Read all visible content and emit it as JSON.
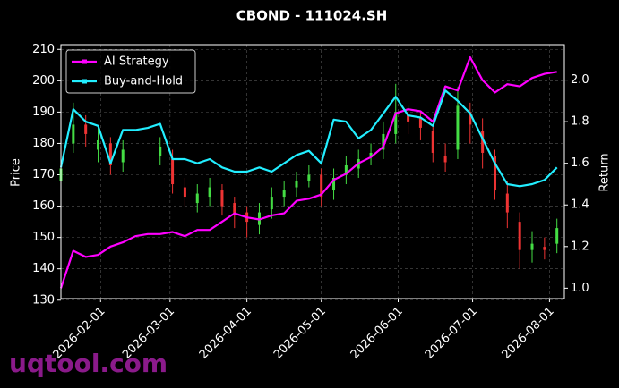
{
  "chart_data": {
    "type": "candlestick",
    "title": "CBOND - 111024.SH",
    "ylabel": "Price",
    "y2label": "Return",
    "watermark": "uqtool.com",
    "x": [
      "2026-01-16",
      "2026-01-21",
      "2026-01-26",
      "2026-01-31",
      "2026-02-05",
      "2026-02-10",
      "2026-02-15",
      "2026-02-20",
      "2026-02-25",
      "2026-03-02",
      "2026-03-07",
      "2026-03-12",
      "2026-03-17",
      "2026-03-22",
      "2026-03-27",
      "2026-04-01",
      "2026-04-06",
      "2026-04-11",
      "2026-04-16",
      "2026-04-21",
      "2026-04-26",
      "2026-05-01",
      "2026-05-06",
      "2026-05-11",
      "2026-05-16",
      "2026-05-21",
      "2026-05-26",
      "2026-05-31",
      "2026-06-05",
      "2026-06-10",
      "2026-06-15",
      "2026-06-20",
      "2026-06-25",
      "2026-06-30",
      "2026-07-05",
      "2026-07-10",
      "2026-07-15",
      "2026-07-20",
      "2026-07-25",
      "2026-07-30",
      "2026-08-04"
    ],
    "xlim": [
      "2026-01-16",
      "2026-08-07"
    ],
    "xticks": [
      "2026-02-01",
      "2026-03-01",
      "2026-04-01",
      "2026-05-01",
      "2026-06-01",
      "2026-07-01",
      "2026-08-01"
    ],
    "ylim": [
      130.5,
      211.5
    ],
    "yticks": [
      130,
      140,
      150,
      160,
      170,
      180,
      190,
      200,
      210
    ],
    "y2lim": [
      0.95,
      2.17
    ],
    "y2ticks": [
      {
        "value": 1.0,
        "label": "1.0"
      },
      1.2,
      1.4,
      1.6,
      1.8,
      {
        "value": 2.0,
        "label": "2.0"
      }
    ],
    "grid": true,
    "legend": "upper left",
    "up_color": "#44dd44",
    "down_color": "#ee3333",
    "candles": {
      "open": [
        168,
        180,
        186,
        178,
        180,
        174,
        null,
        null,
        176,
        175,
        166,
        161,
        163,
        165,
        161,
        158,
        154,
        159,
        163,
        166,
        168,
        170,
        165,
        170,
        172,
        176,
        178,
        183,
        189,
        188,
        184,
        176,
        178,
        190,
        184,
        176,
        164,
        155,
        146,
        147,
        148
      ],
      "high": [
        176,
        193,
        189,
        185,
        182,
        181,
        null,
        null,
        182,
        178,
        169,
        167,
        169,
        167,
        163,
        160,
        161,
        166,
        168,
        171,
        173,
        172,
        172,
        176,
        178,
        180,
        187,
        199,
        192,
        190,
        186,
        180,
        198,
        193,
        188,
        178,
        168,
        158,
        152,
        150,
        156
      ],
      "low": [
        165,
        177,
        179,
        174,
        170,
        171,
        null,
        null,
        173,
        164,
        160,
        158,
        160,
        157,
        153,
        150,
        151,
        156,
        160,
        163,
        166,
        160,
        162,
        167,
        169,
        173,
        175,
        180,
        183,
        181,
        174,
        171,
        175,
        180,
        172,
        162,
        153,
        140,
        142,
        143,
        145
      ],
      "close": [
        172,
        186,
        183,
        181,
        173,
        178,
        null,
        null,
        179,
        167,
        163,
        164,
        166,
        160,
        157,
        155,
        158,
        163,
        165,
        168,
        170,
        163,
        169,
        173,
        175,
        177,
        183,
        190,
        187,
        185,
        177,
        174,
        192,
        186,
        177,
        165,
        158,
        146,
        148,
        146,
        153
      ]
    },
    "series": [
      {
        "name": "AI Strategy",
        "color": "#ff00ff",
        "axis": "y2",
        "values": [
          1.0,
          1.18,
          1.15,
          1.16,
          1.2,
          1.22,
          1.25,
          1.26,
          1.26,
          1.27,
          1.25,
          1.28,
          1.28,
          1.32,
          1.36,
          1.34,
          1.33,
          1.35,
          1.36,
          1.42,
          1.43,
          1.45,
          1.52,
          1.55,
          1.6,
          1.63,
          1.68,
          1.84,
          1.86,
          1.85,
          1.8,
          1.97,
          1.95,
          2.11,
          2.0,
          1.94,
          1.98,
          1.97,
          2.01,
          2.03,
          2.04
        ]
      },
      {
        "name": "Buy-and-Hold",
        "color": "#22eeff",
        "axis": "y2",
        "values": [
          1.58,
          1.86,
          1.8,
          1.78,
          1.6,
          1.76,
          1.76,
          1.77,
          1.79,
          1.62,
          1.62,
          1.6,
          1.62,
          1.58,
          1.56,
          1.56,
          1.58,
          1.56,
          1.6,
          1.64,
          1.66,
          1.6,
          1.81,
          1.8,
          1.72,
          1.76,
          1.84,
          1.92,
          1.83,
          1.82,
          1.78,
          1.95,
          1.9,
          1.84,
          1.72,
          1.6,
          1.5,
          1.49,
          1.5,
          1.52,
          1.58
        ]
      }
    ]
  }
}
